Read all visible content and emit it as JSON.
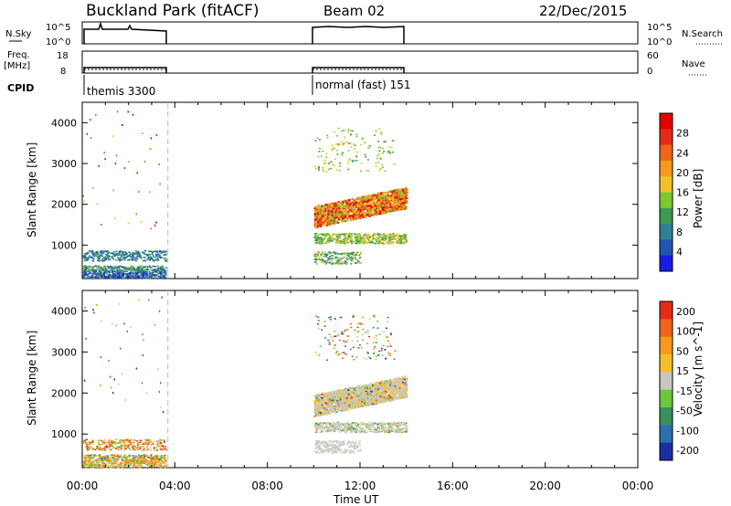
{
  "header": {
    "station": "Buckland Park (fitACF)",
    "beam": "Beam 02",
    "date": "22/Dec/2015"
  },
  "top_panels": {
    "nsky_label": "N.Sky",
    "nsearch_label": "N.Search",
    "nsky_ticks": [
      "10^5",
      "10^0"
    ],
    "nsearch_ticks": [
      "10^5",
      "10^0"
    ],
    "freq_label": "Freq.",
    "freq_unit": "[MHz]",
    "freq_ticks": [
      "18",
      "8"
    ],
    "nave_label": "Nave",
    "nave_ticks": [
      "60",
      "0"
    ],
    "cpid_label": "CPID",
    "cpid_entries": [
      {
        "name": "themis 3300",
        "start": "00:00"
      },
      {
        "name": "normal (fast) 151",
        "start": "10:00"
      }
    ]
  },
  "chart_data": [
    {
      "type": "heatmap",
      "title": "",
      "xlabel": "Time UT",
      "ylabel": "Slant Range [km]",
      "x_ticks": [
        "00:00",
        "04:00",
        "08:00",
        "12:00",
        "16:00",
        "20:00",
        "00:00"
      ],
      "x_range_hours": [
        0,
        24
      ],
      "y_ticks": [
        1000,
        2000,
        3000,
        4000
      ],
      "ylim": [
        180,
        4500
      ],
      "colorbar": {
        "label": "Power [dB]",
        "ticks": [
          4,
          8,
          12,
          16,
          20,
          24,
          28
        ],
        "range": [
          0,
          32
        ],
        "colors": [
          "#1a1ae6",
          "#2255b0",
          "#2f7f95",
          "#3f9950",
          "#7fc92f",
          "#f2c12a",
          "#f59a1d",
          "#f0641b",
          "#e62a1a",
          "#e60000"
        ]
      },
      "segments": [
        {
          "start_hour": 0.0,
          "end_hour": 3.7,
          "description_range_km": [
            200,
            900
          ]
        },
        {
          "start_hour": 10.0,
          "end_hour": 14.0,
          "description_range_km": [
            400,
            3800
          ]
        }
      ]
    },
    {
      "type": "heatmap",
      "title": "",
      "xlabel": "Time UT",
      "ylabel": "Slant Range [km]",
      "x_ticks": [
        "00:00",
        "04:00",
        "08:00",
        "12:00",
        "16:00",
        "20:00",
        "00:00"
      ],
      "x_range_hours": [
        0,
        24
      ],
      "y_ticks": [
        1000,
        2000,
        3000,
        4000
      ],
      "ylim": [
        180,
        4500
      ],
      "colorbar": {
        "label": "Velocity [m s^-1]",
        "ticks": [
          "200",
          "100",
          "50",
          "15",
          "-15",
          "-50",
          "-100",
          "-200"
        ],
        "colors": [
          "#1a2ea0",
          "#2a6fb0",
          "#3a8f5a",
          "#6cc83a",
          "#c8c8c0",
          "#f2c12a",
          "#f59a1d",
          "#f0641b",
          "#e62a1a"
        ]
      }
    }
  ]
}
